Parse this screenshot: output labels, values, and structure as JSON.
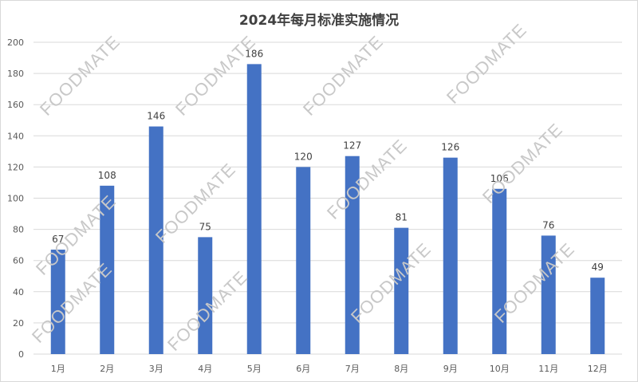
{
  "chart_data": {
    "type": "bar",
    "title": "2024年每月标准实施情况",
    "xlabel": "",
    "ylabel": "",
    "categories": [
      "1月",
      "2月",
      "3月",
      "4月",
      "5月",
      "6月",
      "7月",
      "8月",
      "9月",
      "10月",
      "11月",
      "12月"
    ],
    "values": [
      67,
      108,
      146,
      75,
      186,
      120,
      127,
      81,
      126,
      106,
      76,
      49
    ],
    "ylim": [
      0,
      200
    ],
    "yticks": [
      0,
      20,
      40,
      60,
      80,
      100,
      120,
      140,
      160,
      180,
      200
    ],
    "grid": true,
    "legend": "none",
    "data_labels": true
  },
  "watermark": {
    "text": "FOODMATE"
  },
  "colors": {
    "bar": "#4472c4",
    "grid": "#d9d9d9",
    "axis_text": "#595959",
    "label_text": "#404040",
    "watermark": "#c8c8c8"
  }
}
